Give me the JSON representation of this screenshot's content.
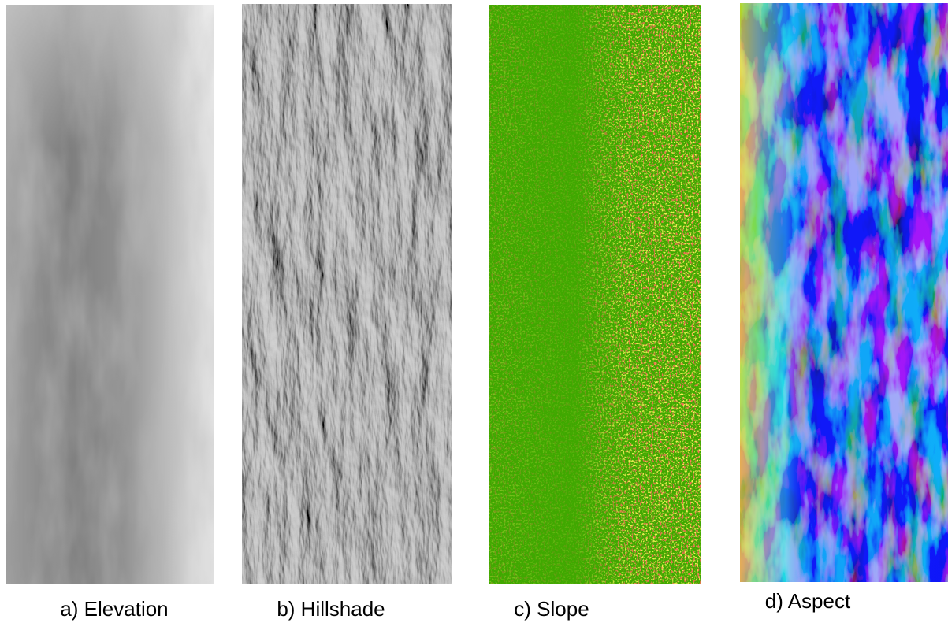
{
  "panels": [
    {
      "caption": "a) Elevation"
    },
    {
      "caption": "b) Hillshade"
    },
    {
      "caption": "c) Slope"
    },
    {
      "caption": "d) Aspect"
    }
  ]
}
